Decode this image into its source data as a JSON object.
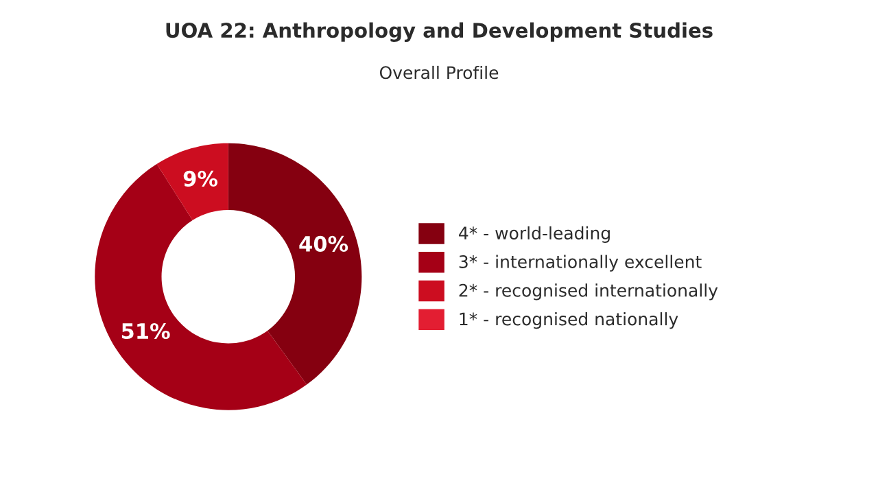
{
  "chart_data": {
    "type": "donut",
    "title": "UOA 22: Anthropology and Development Studies",
    "subtitle": "Overall Profile",
    "categories": [
      "4* - world-leading",
      "3* - internationally excellent",
      "2* - recognised internationally",
      "1* - recognised nationally"
    ],
    "values": [
      40,
      51,
      9,
      0
    ],
    "colors": [
      "#850010",
      "#a50016",
      "#cc0d20",
      "#e31e32"
    ],
    "value_labels": [
      "40%",
      "51%",
      "9%",
      null
    ],
    "legend": "right"
  }
}
